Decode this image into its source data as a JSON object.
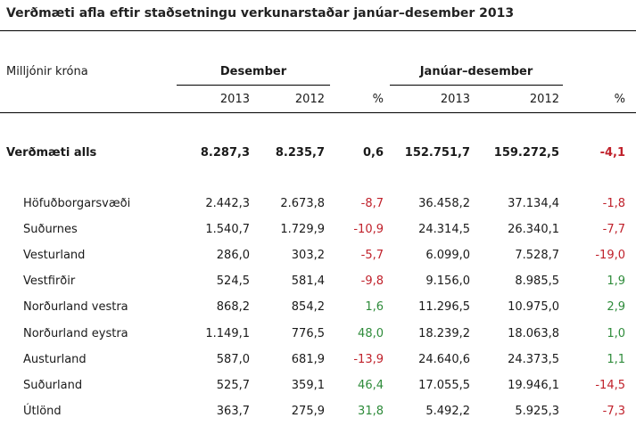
{
  "title": "Verðmæti afla eftir staðsetningu verkunarstaðar janúar–desember 2013",
  "header": {
    "unit_label": "Milljónir króna",
    "group_month": "Desember",
    "group_year": "Janúar–desember",
    "columns": [
      "2013",
      "2012",
      "%",
      "2013",
      "2012",
      "%"
    ]
  },
  "total": {
    "label": "Verðmæti alls",
    "values": [
      "8.287,3",
      "8.235,7",
      "0,6",
      "152.751,7",
      "159.272,5",
      "-4,1"
    ],
    "signs": [
      "",
      "",
      "pos",
      "",
      "",
      "neg"
    ]
  },
  "rows": [
    {
      "label": "Höfuðborgarsvæði",
      "values": [
        "2.442,3",
        "2.673,8",
        "-8,7",
        "36.458,2",
        "37.134,4",
        "-1,8"
      ]
    },
    {
      "label": "Suðurnes",
      "values": [
        "1.540,7",
        "1.729,9",
        "-10,9",
        "24.314,5",
        "26.340,1",
        "-7,7"
      ]
    },
    {
      "label": "Vesturland",
      "values": [
        "286,0",
        "303,2",
        "-5,7",
        "6.099,0",
        "7.528,7",
        "-19,0"
      ]
    },
    {
      "label": "Vestfirðir",
      "values": [
        "524,5",
        "581,4",
        "-9,8",
        "9.156,0",
        "8.985,5",
        "1,9"
      ]
    },
    {
      "label": "Norðurland vestra",
      "values": [
        "868,2",
        "854,2",
        "1,6",
        "11.296,5",
        "10.975,0",
        "2,9"
      ]
    },
    {
      "label": "Norðurland eystra",
      "values": [
        "1.149,1",
        "776,5",
        "48,0",
        "18.239,2",
        "18.063,8",
        "1,0"
      ]
    },
    {
      "label": "Austurland",
      "values": [
        "587,0",
        "681,9",
        "-13,9",
        "24.640,6",
        "24.373,5",
        "1,1"
      ]
    },
    {
      "label": "Suðurland",
      "values": [
        "525,7",
        "359,1",
        "46,4",
        "17.055,5",
        "19.946,1",
        "-14,5"
      ]
    },
    {
      "label": "Útlönd",
      "values": [
        "363,7",
        "275,9",
        "31,8",
        "5.492,2",
        "5.925,3",
        "-7,3"
      ]
    }
  ],
  "colors": {
    "negative": "#c0212b",
    "positive": "#2e8b3a"
  }
}
